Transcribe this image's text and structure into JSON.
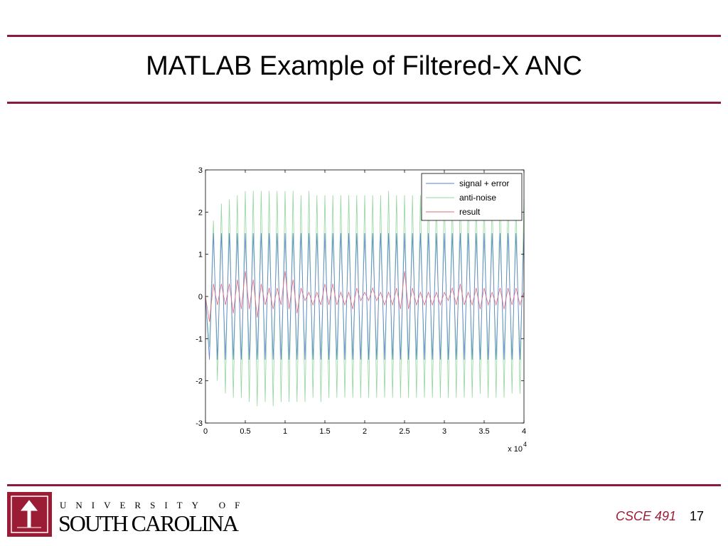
{
  "slide": {
    "title": "MATLAB Example of Filtered-X ANC",
    "footer_course": "CSCE 491",
    "page_number": "17",
    "logo_top": "UNIVERSITY OF",
    "logo_bottom": "SOUTH CAROLINA"
  },
  "chart_data": {
    "type": "line",
    "x": [
      0,
      500,
      1000,
      1500,
      2000,
      2500,
      3000,
      3500,
      4000,
      4500,
      5000,
      5500,
      6000,
      6500,
      7000,
      7500,
      8000,
      8500,
      9000,
      9500,
      10000,
      10500,
      11000,
      11500,
      12000,
      12500,
      13000,
      13500,
      14000,
      14500,
      15000,
      15500,
      16000,
      16500,
      17000,
      17500,
      18000,
      18500,
      19000,
      19500,
      20000,
      20500,
      21000,
      21500,
      22000,
      22500,
      23000,
      23500,
      24000,
      24500,
      25000,
      25500,
      26000,
      26500,
      27000,
      27500,
      28000,
      28500,
      29000,
      29500,
      30000,
      30500,
      31000,
      31500,
      32000,
      32500,
      33000,
      33500,
      34000,
      34500,
      35000,
      35500,
      36000,
      36500,
      37000,
      37500,
      38000,
      38500,
      39000,
      39500,
      40000
    ],
    "series": [
      {
        "name": "signal + error",
        "color": "#5a7fd6",
        "values": [
          0,
          -1.5,
          1.5,
          -1.5,
          1.5,
          -1.5,
          1.5,
          -1.5,
          1.5,
          -1.5,
          1.5,
          -1.5,
          1.5,
          -1.5,
          1.5,
          -1.5,
          1.5,
          -1.5,
          1.5,
          -1.5,
          1.5,
          -1.5,
          1.5,
          -1.5,
          1.5,
          -1.5,
          1.5,
          -1.5,
          1.5,
          -1.5,
          1.5,
          -1.5,
          1.5,
          -1.5,
          1.5,
          -1.5,
          1.5,
          -1.5,
          1.5,
          -1.5,
          1.5,
          -1.5,
          1.5,
          -1.5,
          1.5,
          -1.5,
          1.5,
          -1.5,
          1.5,
          -1.5,
          1.5,
          -1.5,
          1.5,
          -1.5,
          1.5,
          -1.5,
          1.5,
          -1.5,
          1.5,
          -1.5,
          1.5,
          -1.5,
          1.5,
          -1.5,
          1.5,
          -1.5,
          1.5,
          -1.5,
          1.5,
          -1.5,
          1.5,
          -1.5,
          1.5,
          -1.5,
          1.5,
          -1.5,
          1.5,
          -1.5,
          1.5,
          -1.5,
          1.5
        ]
      },
      {
        "name": "anti-noise",
        "color": "#93d69d",
        "values": [
          0,
          -1.2,
          1.8,
          -2.0,
          2.2,
          -2.3,
          2.3,
          -2.4,
          2.4,
          -2.4,
          2.5,
          -2.5,
          2.5,
          -2.6,
          2.5,
          -2.5,
          2.5,
          -2.6,
          2.5,
          -2.5,
          2.5,
          -2.5,
          2.5,
          -2.5,
          2.4,
          -2.5,
          2.5,
          -2.4,
          2.4,
          -2.5,
          2.4,
          -2.4,
          2.4,
          -2.4,
          2.4,
          -2.4,
          2.4,
          -2.4,
          2.4,
          -2.4,
          2.4,
          -2.4,
          2.4,
          -2.4,
          2.4,
          -2.4,
          2.5,
          -2.4,
          2.4,
          -2.4,
          2.4,
          -2.4,
          2.4,
          -2.4,
          2.4,
          -2.4,
          2.4,
          -2.4,
          2.4,
          -2.4,
          2.5,
          -2.4,
          2.4,
          -2.4,
          2.4,
          -2.4,
          2.4,
          -2.4,
          2.4,
          -2.3,
          2.4,
          -2.4,
          2.4,
          -2.4,
          2.4,
          -2.4,
          2.4,
          -2.3,
          2.3,
          -2.3,
          2.3
        ]
      },
      {
        "name": "result",
        "color": "#e06d7c",
        "values": [
          0,
          -0.6,
          0.3,
          -0.2,
          0.3,
          -0.2,
          0.3,
          -0.4,
          0.4,
          -0.3,
          0.6,
          -0.3,
          0.4,
          -0.5,
          0.3,
          -0.2,
          0.2,
          -0.3,
          0.2,
          -0.2,
          0.6,
          -0.3,
          0.4,
          -0.4,
          0.2,
          -0.1,
          0.1,
          -0.2,
          0.1,
          -0.2,
          0.3,
          -0.2,
          0.3,
          -0.2,
          0.1,
          -0.2,
          0.1,
          -0.3,
          0.2,
          -0.1,
          0.1,
          -0.1,
          0.2,
          -0.1,
          0.1,
          -0.2,
          0.1,
          -0.2,
          0.2,
          -0.3,
          0.6,
          -0.3,
          0.2,
          -0.2,
          0.1,
          -0.2,
          0.1,
          -0.2,
          0.1,
          -0.2,
          0.1,
          -0.1,
          0.2,
          -0.2,
          0.3,
          -0.2,
          0.1,
          -0.2,
          0.2,
          -0.3,
          0.2,
          -0.2,
          0.1,
          -0.2,
          0.2,
          -0.3,
          0.2,
          -0.2,
          0.2,
          -0.2,
          0.1
        ]
      }
    ],
    "xlim": [
      0,
      40000
    ],
    "xticks": [
      {
        "value": 0,
        "label": "0"
      },
      {
        "value": 5000,
        "label": "0.5"
      },
      {
        "value": 10000,
        "label": "1"
      },
      {
        "value": 15000,
        "label": "1.5"
      },
      {
        "value": 20000,
        "label": "2"
      },
      {
        "value": 25000,
        "label": "2.5"
      },
      {
        "value": 30000,
        "label": "3"
      },
      {
        "value": 35000,
        "label": "3.5"
      },
      {
        "value": 40000,
        "label": "4"
      }
    ],
    "x_scale_label": {
      "base": "x 10",
      "exponent": "4"
    },
    "ylim": [
      -3,
      3
    ],
    "yticks": [
      -3,
      -2,
      -1,
      0,
      1,
      2,
      3
    ],
    "legend": "northeast"
  }
}
